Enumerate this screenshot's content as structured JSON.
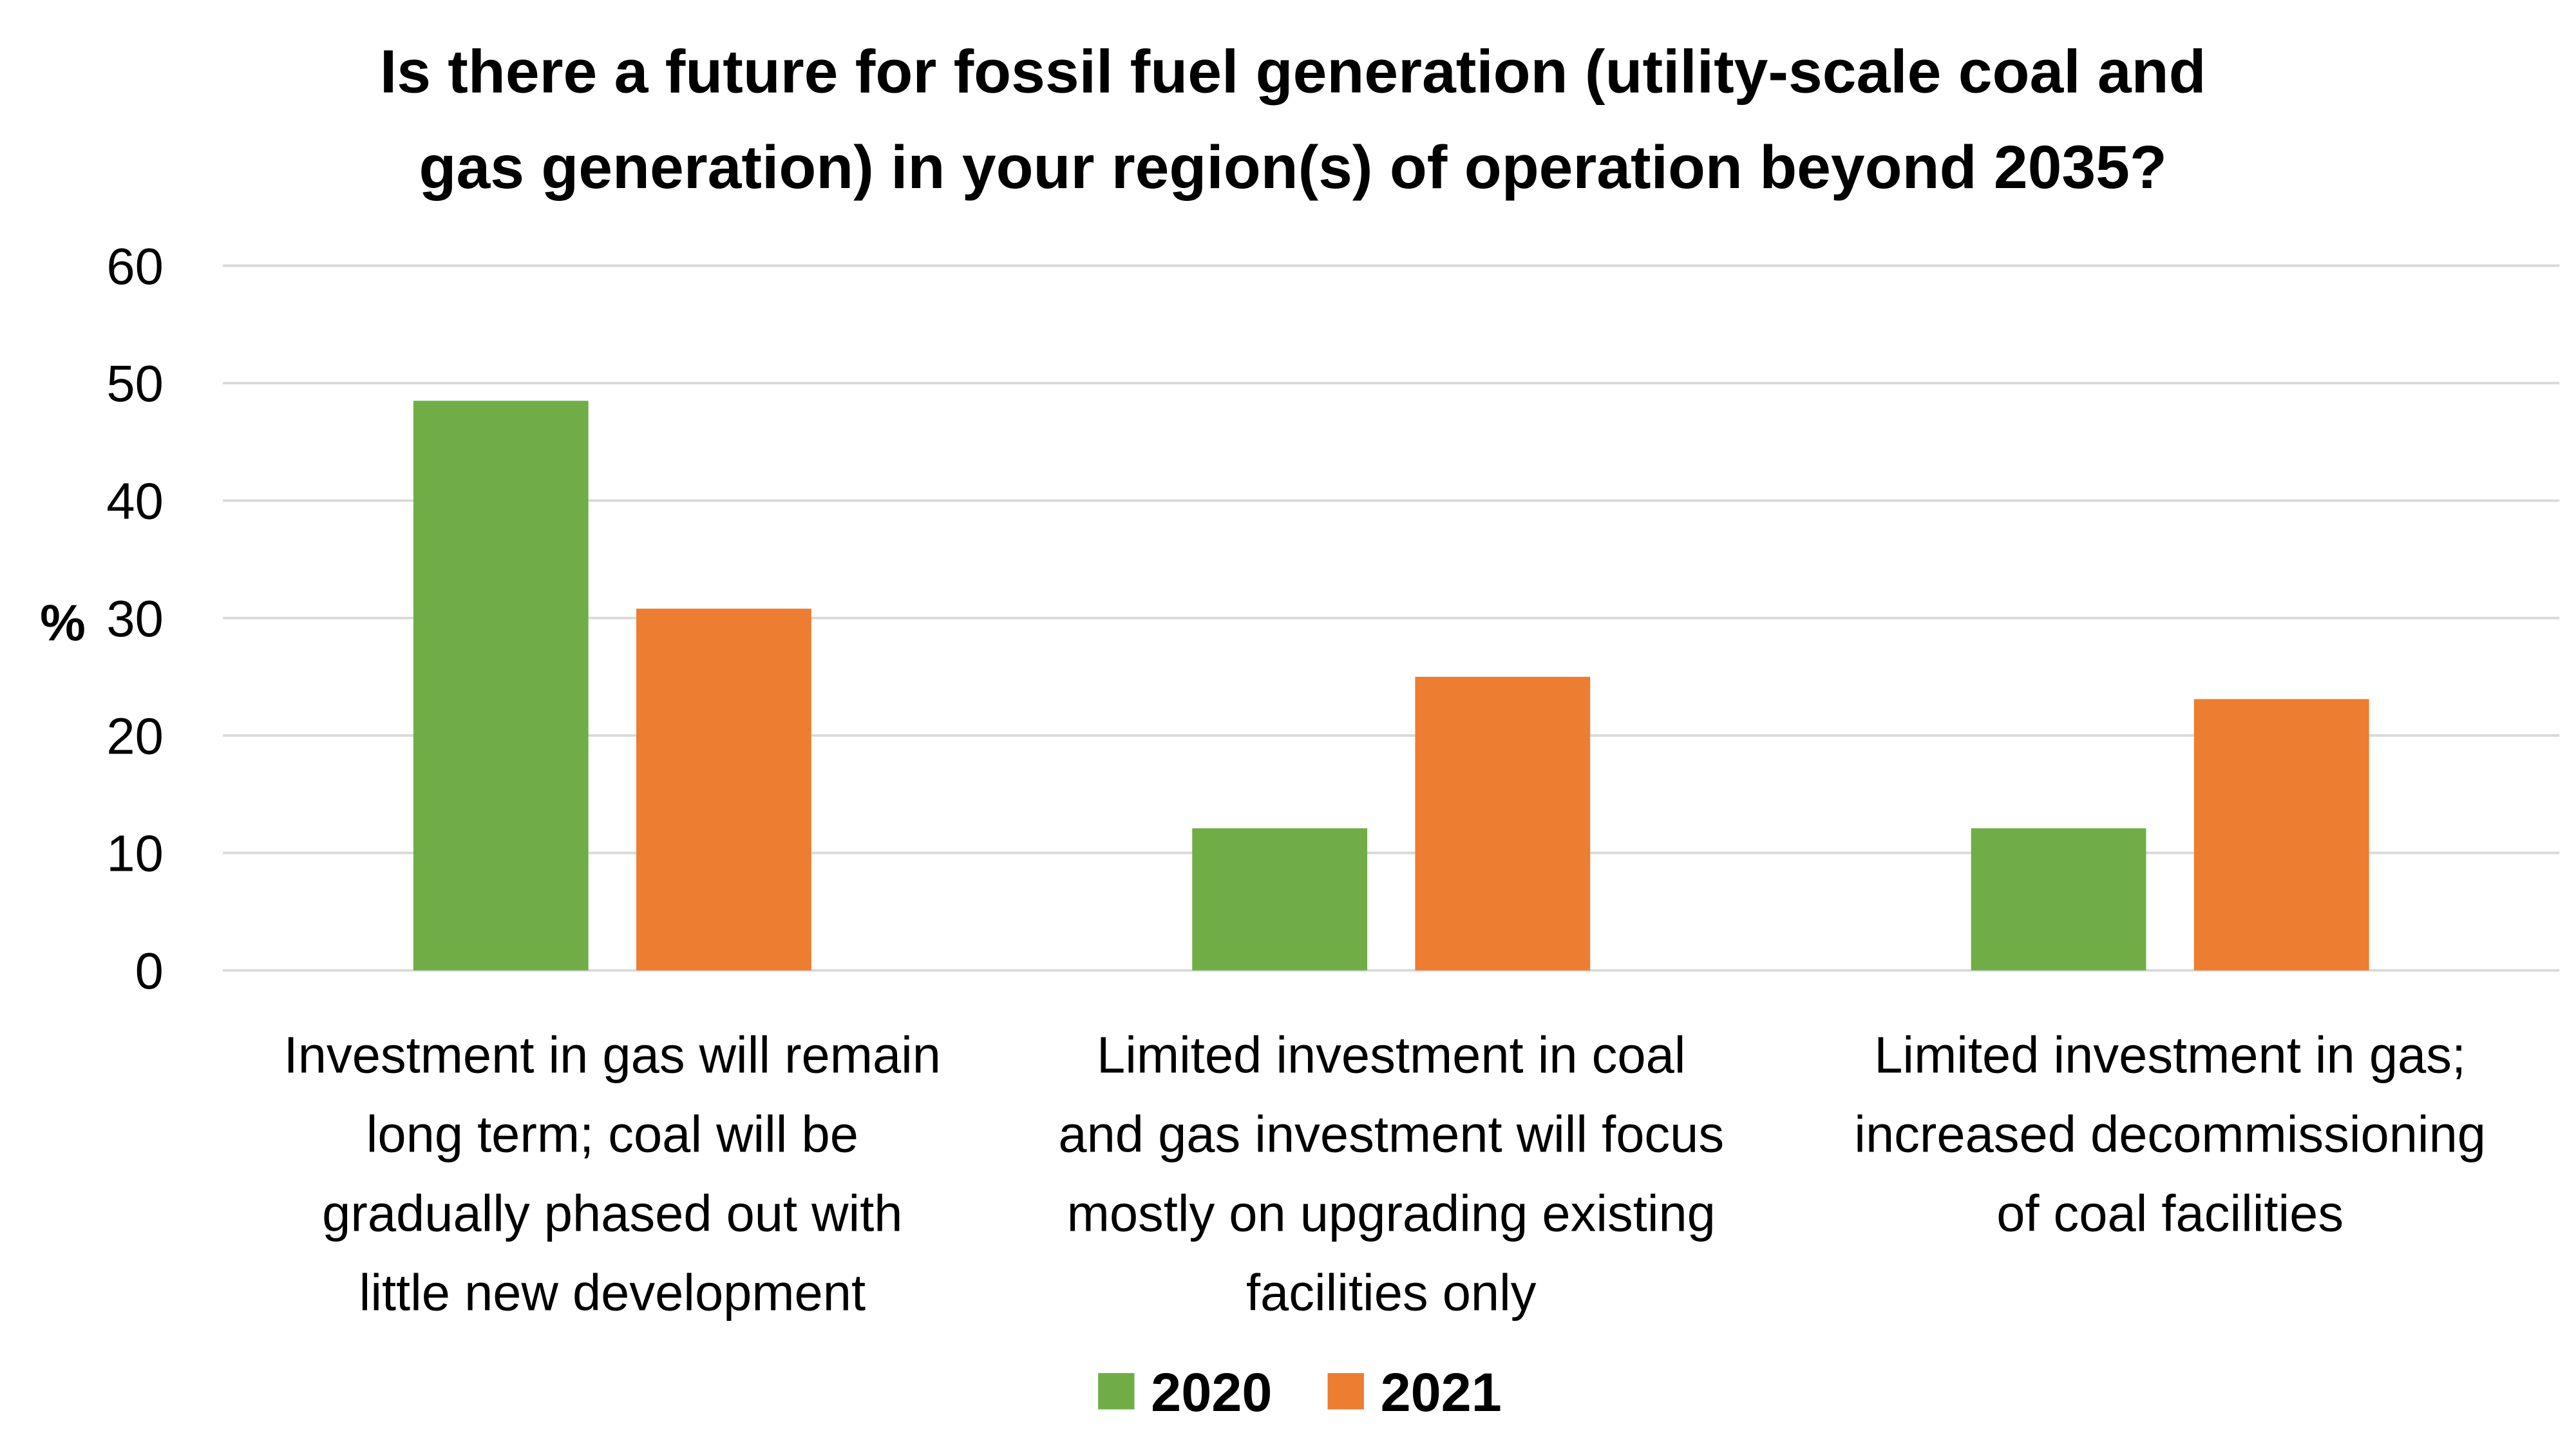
{
  "chart_data": {
    "type": "bar",
    "title_lines": [
      "Is there a future for fossil fuel generation (utility-scale coal and",
      "gas generation) in your region(s) of operation beyond 2035?"
    ],
    "xlabel": "",
    "ylabel": "%",
    "ylim": [
      0,
      60
    ],
    "yticks": [
      0,
      10,
      20,
      30,
      40,
      50,
      60
    ],
    "grid": true,
    "legend_position": "bottom",
    "categories": [
      [
        "Investment in gas will remain",
        "long term; coal will be",
        "gradually phased out with",
        "little new development"
      ],
      [
        "Limited investment in coal",
        "and gas investment will focus",
        "mostly on upgrading existing",
        "facilities only"
      ],
      [
        "Limited investment in gas;",
        "increased decommissioning",
        "of coal facilities"
      ]
    ],
    "series": [
      {
        "name": "2020",
        "color": "#70ad47",
        "values": [
          48.5,
          12.1,
          12.1
        ]
      },
      {
        "name": "2021",
        "color": "#ed7d31",
        "values": [
          30.8,
          25.0,
          23.1
        ]
      }
    ]
  }
}
